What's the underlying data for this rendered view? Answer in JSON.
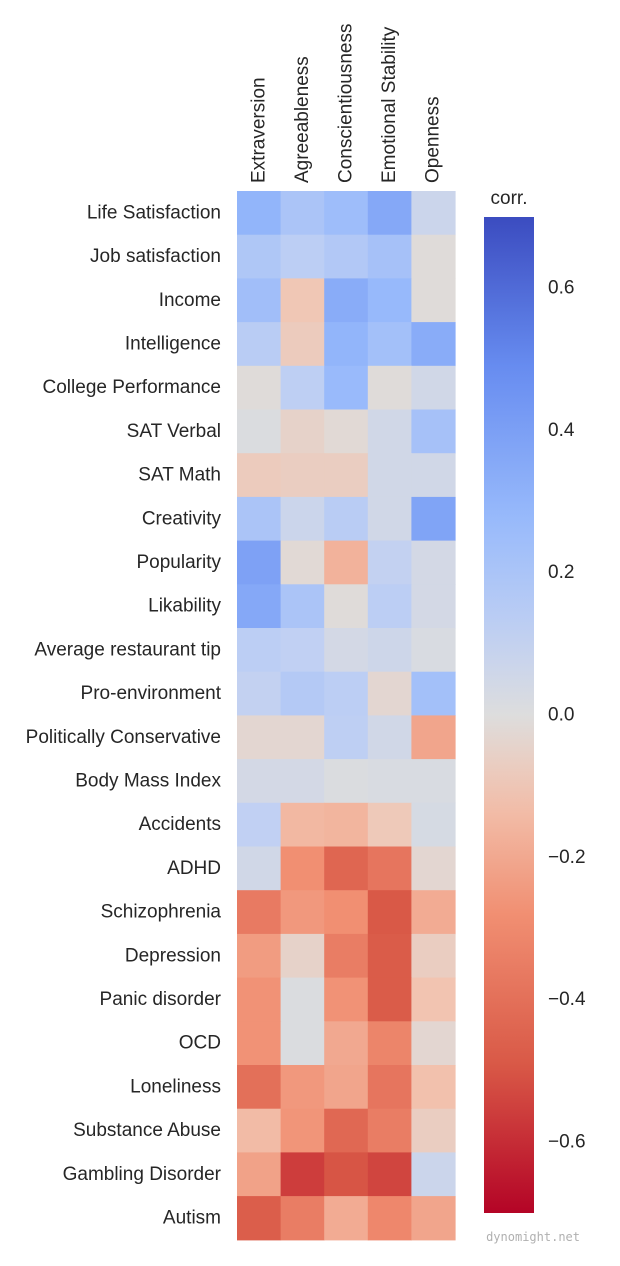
{
  "chart_data": {
    "type": "heatmap",
    "columns": [
      "Extraversion",
      "Agreeableness",
      "Conscientiousness",
      "Emotional Stability",
      "Openness"
    ],
    "rows": [
      "Life Satisfaction",
      "Job satisfaction",
      "Income",
      "Intelligence",
      "College Performance",
      "SAT Verbal",
      "SAT Math",
      "Creativity",
      "Popularity",
      "Likability",
      "Average restaurant tip",
      "Pro-environment",
      "Politically Conservative",
      "Body Mass Index",
      "Accidents",
      "ADHD",
      "Schizophrenia",
      "Depression",
      "Panic disorder",
      "OCD",
      "Loneliness",
      "Substance Abuse",
      "Gambling Disorder",
      "Autism"
    ],
    "values": [
      [
        0.3,
        0.2,
        0.25,
        0.36,
        0.07
      ],
      [
        0.18,
        0.13,
        0.17,
        0.22,
        -0.01
      ],
      [
        0.24,
        -0.1,
        0.34,
        0.28,
        -0.01
      ],
      [
        0.14,
        -0.08,
        0.3,
        0.23,
        0.34
      ],
      [
        -0.01,
        0.12,
        0.27,
        -0.01,
        0.05
      ],
      [
        0.01,
        -0.05,
        -0.02,
        0.05,
        0.22
      ],
      [
        -0.08,
        -0.07,
        -0.07,
        0.05,
        0.05
      ],
      [
        0.2,
        0.07,
        0.14,
        0.05,
        0.38
      ],
      [
        0.39,
        -0.02,
        -0.17,
        0.1,
        0.04
      ],
      [
        0.36,
        0.2,
        -0.01,
        0.13,
        0.04
      ],
      [
        0.13,
        0.11,
        0.04,
        0.06,
        0.02
      ],
      [
        0.1,
        0.16,
        0.13,
        -0.03,
        0.23
      ],
      [
        -0.03,
        -0.03,
        0.12,
        0.05,
        -0.21
      ],
      [
        0.04,
        0.04,
        0.01,
        0.02,
        0.02
      ],
      [
        0.11,
        -0.15,
        -0.16,
        -0.09,
        0.03
      ],
      [
        0.05,
        -0.28,
        -0.44,
        -0.38,
        -0.03
      ],
      [
        -0.36,
        -0.25,
        -0.28,
        -0.49,
        -0.19
      ],
      [
        -0.24,
        -0.05,
        -0.35,
        -0.48,
        -0.07
      ],
      [
        -0.27,
        0.01,
        -0.27,
        -0.48,
        -0.11
      ],
      [
        -0.27,
        0.01,
        -0.2,
        -0.32,
        -0.03
      ],
      [
        -0.4,
        -0.25,
        -0.21,
        -0.38,
        -0.12
      ],
      [
        -0.14,
        -0.26,
        -0.43,
        -0.35,
        -0.07
      ],
      [
        -0.22,
        -0.56,
        -0.5,
        -0.54,
        0.07
      ],
      [
        -0.47,
        -0.35,
        -0.19,
        -0.31,
        -0.21
      ]
    ],
    "colorbar": {
      "title": "corr.",
      "range": [
        -0.7,
        0.7
      ],
      "ticks": [
        0.6,
        0.4,
        0.2,
        0.0,
        -0.2,
        -0.4,
        -0.6
      ],
      "tick_labels": [
        "0.6",
        "0.4",
        "0.2",
        "0.0",
        "−0.2",
        "−0.4",
        "−0.6"
      ],
      "colormap": "coolwarm_r",
      "colors": {
        "positive_end": "#3b4cc0",
        "neutral": "#dddddd",
        "negative_end": "#b40426"
      }
    },
    "grid": false,
    "legend": "colorbar-right"
  },
  "watermark": "dynomight.net"
}
